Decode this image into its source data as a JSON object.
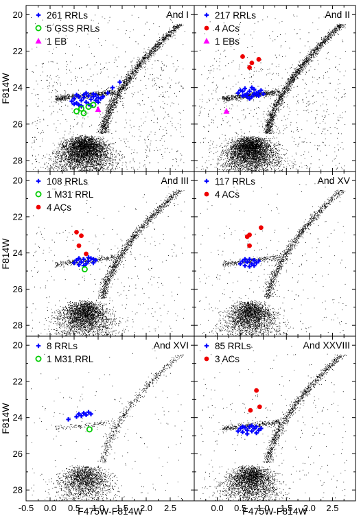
{
  "figure": {
    "shared_xlabel": "F475W-F814W",
    "shared_ylabel": "F814W"
  },
  "chart_data": [
    {
      "type": "scatter",
      "title": "And I",
      "xlabel": "F475W-F814W",
      "ylabel": "F814W",
      "xlim": [
        -0.5,
        3.0
      ],
      "ylim": [
        28.6,
        19.5
      ],
      "y_inverted": true,
      "xticks": [
        -0.5,
        0.0,
        0.5,
        1.0,
        1.5,
        2.0,
        2.5
      ],
      "yticks": [
        20,
        22,
        24,
        26,
        28
      ],
      "xtick_labels": [
        "-0.5",
        "0.0",
        "0.5",
        "1.0",
        "1.5",
        "2.0",
        "2.5"
      ],
      "ytick_labels": [
        "20",
        "22",
        "24",
        "26",
        "28"
      ],
      "legend_position": "top-left",
      "series": [
        {
          "name": "261 RRLs",
          "marker": "blue-cross",
          "color": "#0000ff",
          "points": [
            [
              0.45,
              24.75
            ],
            [
              0.5,
              24.6
            ],
            [
              0.55,
              24.85
            ],
            [
              0.6,
              24.5
            ],
            [
              0.65,
              24.7
            ],
            [
              0.7,
              24.55
            ],
            [
              0.75,
              24.8
            ],
            [
              0.8,
              24.45
            ],
            [
              0.85,
              24.65
            ],
            [
              0.9,
              24.5
            ],
            [
              0.95,
              24.7
            ],
            [
              1.0,
              24.55
            ],
            [
              1.05,
              24.6
            ],
            [
              0.5,
              24.9
            ],
            [
              0.6,
              24.95
            ],
            [
              0.7,
              24.4
            ],
            [
              0.8,
              24.9
            ],
            [
              0.9,
              24.35
            ],
            [
              1.0,
              24.8
            ],
            [
              1.1,
              24.5
            ],
            [
              0.55,
              24.4
            ],
            [
              0.65,
              25.0
            ],
            [
              0.75,
              24.3
            ],
            [
              0.85,
              25.0
            ],
            [
              0.95,
              24.4
            ],
            [
              1.2,
              24.3
            ],
            [
              1.3,
              24.0
            ],
            [
              1.45,
              23.7
            ]
          ]
        },
        {
          "name": "5 GSS RRLs",
          "marker": "green-open-circle",
          "color": "#00cc00",
          "points": [
            [
              0.55,
              25.3
            ],
            [
              0.65,
              25.15
            ],
            [
              0.7,
              25.4
            ],
            [
              0.8,
              25.05
            ],
            [
              0.9,
              24.95
            ]
          ]
        },
        {
          "name": "1 EB",
          "marker": "magenta-triangle",
          "color": "#ff00ff",
          "points": [
            [
              1.0,
              25.2
            ]
          ]
        }
      ]
    },
    {
      "type": "scatter",
      "title": "And II",
      "xlabel": "F475W-F814W",
      "ylabel": "F814W",
      "xlim": [
        -0.5,
        3.0
      ],
      "ylim": [
        28.6,
        19.5
      ],
      "y_inverted": true,
      "xticks": [
        -0.5,
        0.0,
        0.5,
        1.0,
        1.5,
        2.0,
        2.5
      ],
      "yticks": [
        20,
        22,
        24,
        26,
        28
      ],
      "xtick_labels": [
        "-0.5",
        "0.0",
        "0.5",
        "1.0",
        "1.5",
        "2.0",
        "2.5"
      ],
      "ytick_labels": [
        "20",
        "22",
        "24",
        "26",
        "28"
      ],
      "legend_position": "top-left",
      "series": [
        {
          "name": "217 RRLs",
          "marker": "blue-cross",
          "color": "#0000ff",
          "points": [
            [
              0.45,
              24.3
            ],
            [
              0.5,
              24.15
            ],
            [
              0.55,
              24.45
            ],
            [
              0.6,
              24.05
            ],
            [
              0.65,
              24.35
            ],
            [
              0.7,
              24.2
            ],
            [
              0.75,
              24.5
            ],
            [
              0.8,
              24.1
            ],
            [
              0.85,
              24.4
            ],
            [
              0.9,
              24.25
            ],
            [
              0.95,
              24.15
            ],
            [
              1.0,
              24.35
            ],
            [
              0.55,
              24.2
            ],
            [
              0.65,
              24.5
            ],
            [
              0.75,
              24.0
            ],
            [
              0.85,
              24.3
            ],
            [
              0.6,
              24.4
            ],
            [
              0.7,
              24.6
            ],
            [
              0.8,
              24.35
            ],
            [
              0.9,
              24.45
            ]
          ]
        },
        {
          "name": "4 ACs",
          "marker": "red-filled-circle",
          "color": "#ee0000",
          "points": [
            [
              0.55,
              22.3
            ],
            [
              0.7,
              22.9
            ],
            [
              0.75,
              22.65
            ],
            [
              0.9,
              22.45
            ]
          ]
        },
        {
          "name": "1 EBs",
          "marker": "magenta-triangle",
          "color": "#ff00ff",
          "points": [
            [
              0.2,
              25.3
            ]
          ]
        }
      ]
    },
    {
      "type": "scatter",
      "title": "And III",
      "xlabel": "F475W-F814W",
      "ylabel": "F814W",
      "xlim": [
        -0.5,
        3.0
      ],
      "ylim": [
        28.6,
        19.5
      ],
      "y_inverted": true,
      "xticks": [
        -0.5,
        0.0,
        0.5,
        1.0,
        1.5,
        2.0,
        2.5
      ],
      "yticks": [
        20,
        22,
        24,
        26,
        28
      ],
      "xtick_labels": [
        "-0.5",
        "0.0",
        "0.5",
        "1.0",
        "1.5",
        "2.0",
        "2.5"
      ],
      "ytick_labels": [
        "20",
        "22",
        "24",
        "26",
        "28"
      ],
      "legend_position": "top-left",
      "series": [
        {
          "name": "108 RRLs",
          "marker": "blue-cross",
          "color": "#0000ff",
          "points": [
            [
              0.5,
              24.55
            ],
            [
              0.55,
              24.4
            ],
            [
              0.6,
              24.65
            ],
            [
              0.65,
              24.5
            ],
            [
              0.7,
              24.35
            ],
            [
              0.75,
              24.6
            ],
            [
              0.8,
              24.45
            ],
            [
              0.85,
              24.3
            ],
            [
              0.9,
              24.55
            ],
            [
              0.95,
              24.4
            ],
            [
              0.6,
              24.3
            ],
            [
              0.7,
              24.7
            ],
            [
              0.8,
              24.25
            ],
            [
              0.9,
              24.35
            ]
          ]
        },
        {
          "name": "1 M31 RRL",
          "marker": "green-open-circle",
          "color": "#00cc00",
          "points": [
            [
              0.72,
              24.9
            ]
          ]
        },
        {
          "name": "4 ACs",
          "marker": "red-filled-circle",
          "color": "#ee0000",
          "points": [
            [
              0.55,
              22.85
            ],
            [
              0.6,
              23.6
            ],
            [
              0.65,
              23.05
            ],
            [
              0.75,
              24.05
            ]
          ]
        }
      ]
    },
    {
      "type": "scatter",
      "title": "And XV",
      "xlabel": "F475W-F814W",
      "ylabel": "F814W",
      "xlim": [
        -0.5,
        3.0
      ],
      "ylim": [
        28.6,
        19.5
      ],
      "y_inverted": true,
      "xticks": [
        -0.5,
        0.0,
        0.5,
        1.0,
        1.5,
        2.0,
        2.5
      ],
      "yticks": [
        20,
        22,
        24,
        26,
        28
      ],
      "xtick_labels": [
        "-0.5",
        "0.0",
        "0.5",
        "1.0",
        "1.5",
        "2.0",
        "2.5"
      ],
      "ytick_labels": [
        "20",
        "22",
        "24",
        "26",
        "28"
      ],
      "legend_position": "top-left",
      "series": [
        {
          "name": "117 RRLs",
          "marker": "blue-cross",
          "color": "#0000ff",
          "points": [
            [
              0.5,
              24.6
            ],
            [
              0.55,
              24.45
            ],
            [
              0.6,
              24.7
            ],
            [
              0.65,
              24.5
            ],
            [
              0.7,
              24.35
            ],
            [
              0.75,
              24.6
            ],
            [
              0.8,
              24.4
            ],
            [
              0.85,
              24.55
            ],
            [
              0.9,
              24.45
            ],
            [
              0.6,
              24.35
            ],
            [
              0.7,
              24.75
            ],
            [
              0.8,
              24.7
            ]
          ]
        },
        {
          "name": "4 ACs",
          "marker": "red-filled-circle",
          "color": "#ee0000",
          "points": [
            [
              0.65,
              23.1
            ],
            [
              0.7,
              23.0
            ],
            [
              0.7,
              23.6
            ],
            [
              0.95,
              22.6
            ]
          ]
        }
      ]
    },
    {
      "type": "scatter",
      "title": "And XVI",
      "xlabel": "F475W-F814W",
      "ylabel": "F814W",
      "xlim": [
        -0.5,
        3.0
      ],
      "ylim": [
        28.6,
        19.5
      ],
      "y_inverted": true,
      "xticks": [
        -0.5,
        0.0,
        0.5,
        1.0,
        1.5,
        2.0,
        2.5
      ],
      "yticks": [
        20,
        22,
        24,
        26,
        28
      ],
      "xtick_labels": [
        "-0.5",
        "0.0",
        "0.5",
        "1.0",
        "1.5",
        "2.0",
        "2.5"
      ],
      "ytick_labels": [
        "20",
        "22",
        "24",
        "26",
        "28"
      ],
      "legend_position": "top-left",
      "series": [
        {
          "name": "8 RRLs",
          "marker": "blue-cross",
          "color": "#0000ff",
          "points": [
            [
              0.38,
              24.1
            ],
            [
              0.55,
              23.95
            ],
            [
              0.6,
              23.8
            ],
            [
              0.65,
              23.9
            ],
            [
              0.7,
              23.75
            ],
            [
              0.75,
              23.85
            ],
            [
              0.8,
              23.7
            ],
            [
              0.85,
              23.8
            ]
          ]
        },
        {
          "name": "1 M31 RRL",
          "marker": "green-open-circle",
          "color": "#00cc00",
          "points": [
            [
              0.82,
              24.65
            ]
          ]
        }
      ]
    },
    {
      "type": "scatter",
      "title": "And XXVIII",
      "xlabel": "F475W-F814W",
      "ylabel": "F814W",
      "xlim": [
        -0.5,
        3.0
      ],
      "ylim": [
        28.6,
        19.5
      ],
      "y_inverted": true,
      "xticks": [
        -0.5,
        0.0,
        0.5,
        1.0,
        1.5,
        2.0,
        2.5
      ],
      "yticks": [
        20,
        22,
        24,
        26,
        28
      ],
      "xtick_labels": [
        "-0.5",
        "0.0",
        "0.5",
        "1.0",
        "1.5",
        "2.0",
        "2.5"
      ],
      "ytick_labels": [
        "20",
        "22",
        "24",
        "26",
        "28"
      ],
      "legend_position": "top-left",
      "series": [
        {
          "name": "85 RRLs",
          "marker": "blue-cross",
          "color": "#0000ff",
          "points": [
            [
              0.45,
              24.75
            ],
            [
              0.5,
              24.6
            ],
            [
              0.55,
              24.8
            ],
            [
              0.6,
              24.55
            ],
            [
              0.65,
              24.7
            ],
            [
              0.7,
              24.5
            ],
            [
              0.75,
              24.75
            ],
            [
              0.8,
              24.6
            ],
            [
              0.85,
              24.5
            ],
            [
              0.9,
              24.7
            ],
            [
              0.95,
              24.6
            ],
            [
              0.55,
              24.5
            ],
            [
              0.65,
              24.9
            ],
            [
              0.75,
              24.45
            ],
            [
              0.85,
              24.85
            ]
          ]
        },
        {
          "name": "3 ACs",
          "marker": "red-filled-circle",
          "color": "#ee0000",
          "points": [
            [
              0.72,
              23.6
            ],
            [
              0.85,
              22.5
            ],
            [
              0.92,
              23.4
            ]
          ]
        }
      ]
    }
  ]
}
